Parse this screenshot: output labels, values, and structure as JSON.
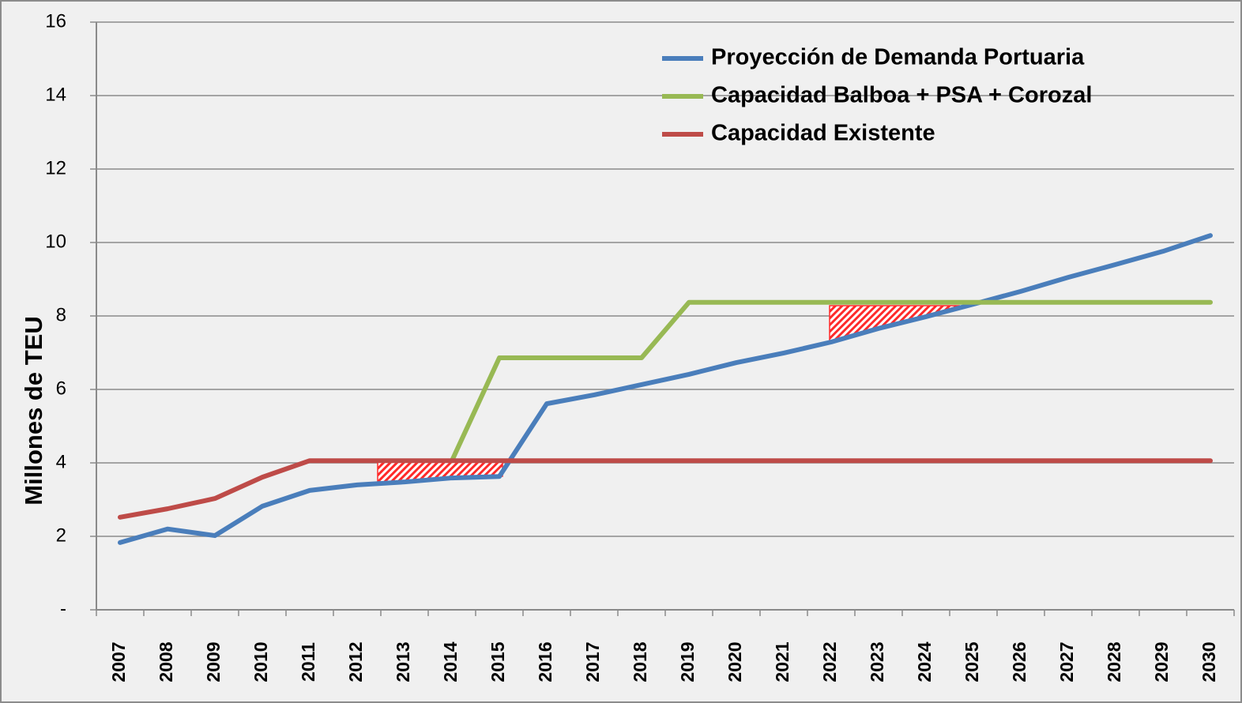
{
  "chart_data": {
    "type": "line",
    "y_label": "Millones de TEU",
    "categories": [
      "2007",
      "2008",
      "2009",
      "2010",
      "2011",
      "2012",
      "2013",
      "2014",
      "2015",
      "2016",
      "2017",
      "2018",
      "2019",
      "2020",
      "2021",
      "2022",
      "2023",
      "2024",
      "2025",
      "2026",
      "2027",
      "2028",
      "2029",
      "2030"
    ],
    "series": [
      {
        "name": "Proyección de Demanda Portuaria",
        "color": "#4a7ebb",
        "values": [
          1.83,
          2.2,
          2.02,
          2.82,
          3.25,
          3.4,
          3.48,
          3.59,
          3.63,
          5.61,
          5.85,
          6.13,
          6.41,
          6.73,
          6.99,
          7.29,
          7.66,
          7.98,
          8.32,
          8.67,
          9.05,
          9.4,
          9.76,
          10.19
        ]
      },
      {
        "name": "Capacidad Balboa + PSA + Corozal",
        "color": "#98b954",
        "values": [
          null,
          null,
          null,
          null,
          null,
          null,
          null,
          4.06,
          6.86,
          6.86,
          6.86,
          6.86,
          8.37,
          8.37,
          8.37,
          8.37,
          8.37,
          8.37,
          8.37,
          8.37,
          8.37,
          8.37,
          8.37,
          8.37
        ]
      },
      {
        "name": "Capacidad Existente",
        "color": "#be4b48",
        "values": [
          2.52,
          2.75,
          3.03,
          3.61,
          4.06,
          4.06,
          4.06,
          4.06,
          4.06,
          4.06,
          4.06,
          4.06,
          4.06,
          4.06,
          4.06,
          4.06,
          4.06,
          4.06,
          4.06,
          4.06,
          4.06,
          4.06,
          4.06,
          4.06
        ]
      }
    ],
    "ylim": [
      0,
      16
    ],
    "yticks": [
      {
        "value": 0,
        "label": "-"
      },
      2,
      4,
      6,
      8,
      10,
      12,
      14,
      16
    ],
    "grid": true,
    "legend": "top-right"
  }
}
